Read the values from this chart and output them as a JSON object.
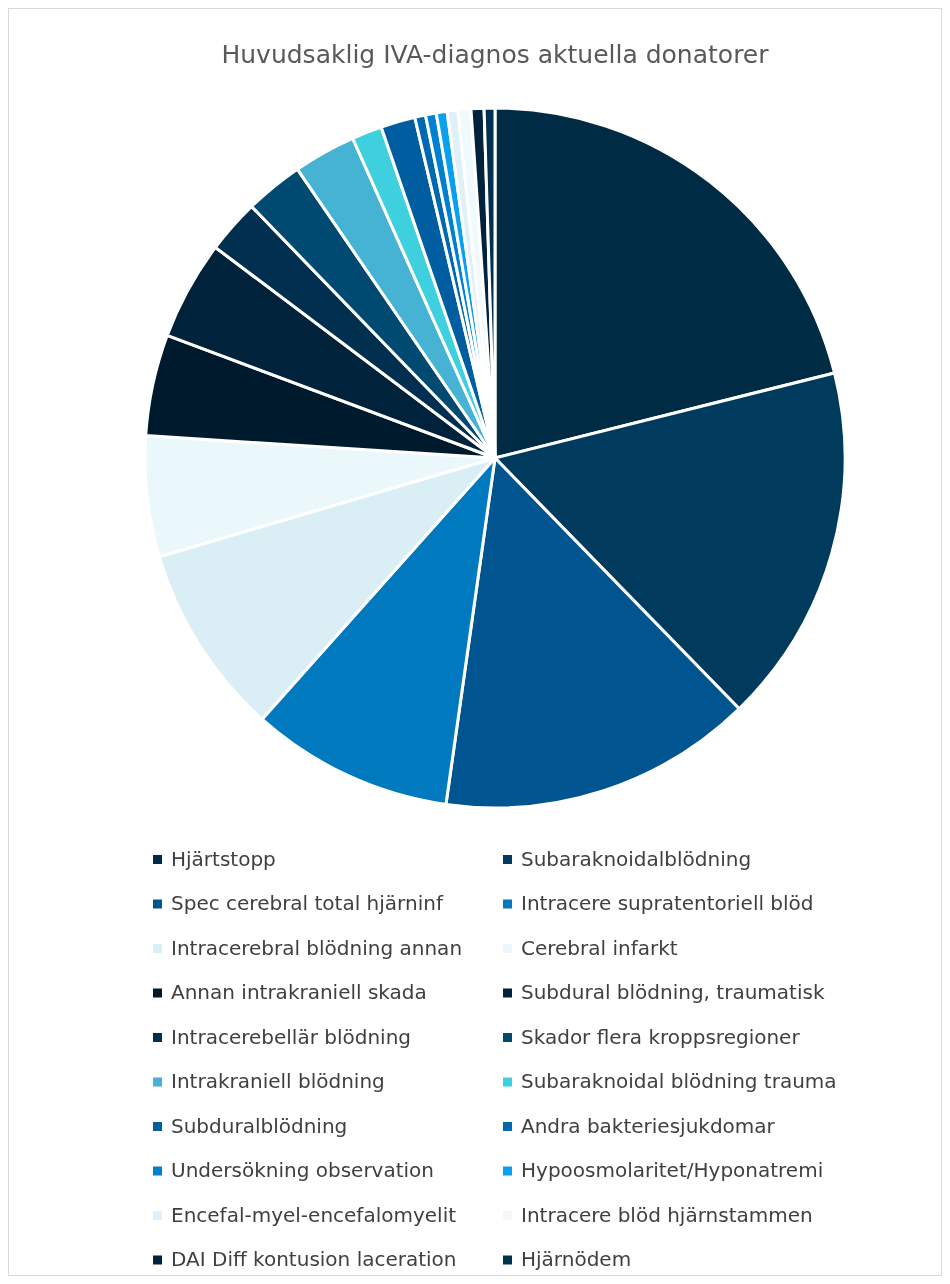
{
  "chart_data": {
    "type": "pie",
    "title": "Huvudsaklig IVA-diagnos aktuella donatorer",
    "categories": [
      "Hjärtstopp",
      "Subaraknoidalblödning",
      "Spec cerebral total hjärninf",
      "Intracere supratentoriell blöd",
      "Intracerebral blödning annan",
      "Cerebral infarkt",
      "Annan intrakraniell skada",
      "Subdural blödning, traumatisk",
      "Intracerebellär blödning",
      "Skador flera kroppsregioner",
      "Intrakraniell blödning",
      "Subaraknoidal blödning  trauma",
      "Subduralblödning",
      "Andra bakteriesjukdomar",
      "Undersökning observation",
      "Hypoosmolaritet/Hyponatremi",
      "Encefal-myel-encefalomyelit",
      "Intracere blöd hjärnstammen",
      "DAI Diff kontusion laceration",
      "Hjärnödem"
    ],
    "values": [
      21.2,
      16.7,
      14.6,
      9.4,
      8.9,
      5.6,
      4.7,
      4.6,
      2.5,
      2.7,
      2.9,
      1.4,
      1.6,
      0.5,
      0.5,
      0.5,
      0.5,
      0.6,
      0.6,
      0.5
    ],
    "colors": [
      "#002b45",
      "#003a5d",
      "#005591",
      "#0079bf",
      "#daeef6",
      "#eaf8fc",
      "#001a2d",
      "#00233b",
      "#002f4f",
      "#004a72",
      "#46b2d4",
      "#3fd0e0",
      "#005ea0",
      "#0068b0",
      "#0080d0",
      "#0aa0f0",
      "#e0f0f8",
      "#f0fafd",
      "#00233b",
      "#003050"
    ],
    "legend": "bottom"
  }
}
